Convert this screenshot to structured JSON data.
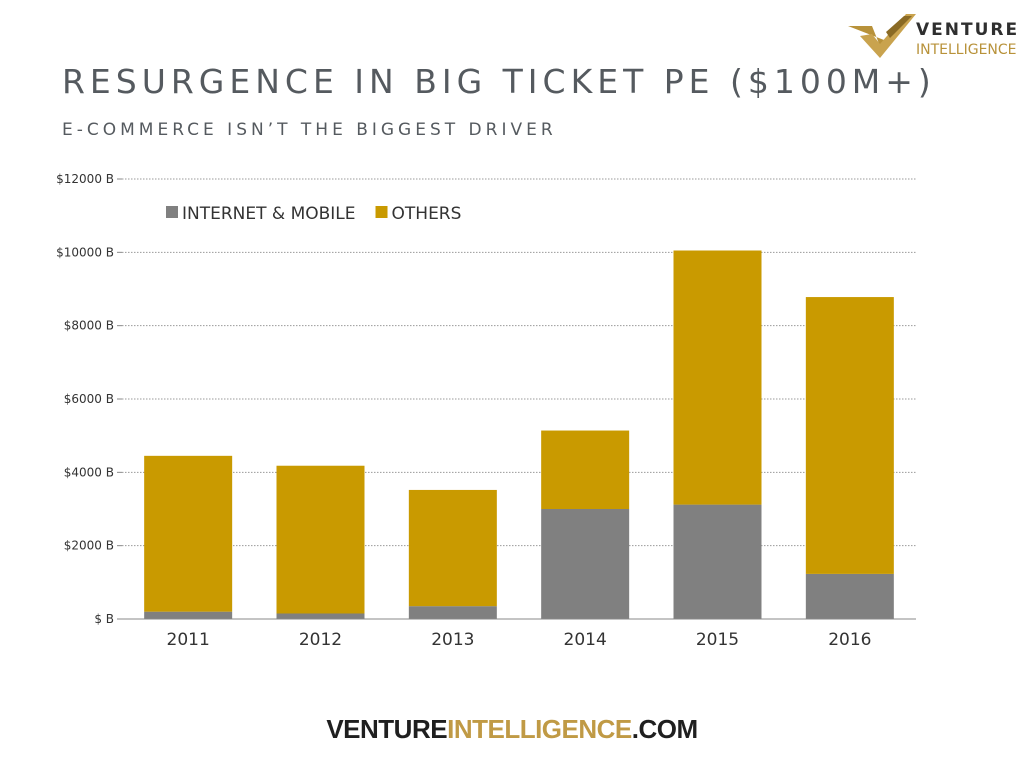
{
  "header": {
    "title": "RESURGENCE IN BIG TICKET PE ($100M+)",
    "subtitle": "E-COMMERCE ISN’T THE BIGGEST DRIVER"
  },
  "logo_top": {
    "word1": "VENTURE",
    "word2": "INTELLIGENCE"
  },
  "footer": {
    "part1": "VENTURE",
    "part2": "INTELLIGENCE",
    "part3": ".COM"
  },
  "colors": {
    "internet_mobile": "#808080",
    "others": "#c99a00",
    "grid": "#9a9a9a",
    "logo_gold": "#b8923a"
  },
  "chart_data": {
    "type": "bar",
    "stacked": true,
    "categories": [
      "2011",
      "2012",
      "2013",
      "2014",
      "2015",
      "2016"
    ],
    "series": [
      {
        "name": "INTERNET & MOBILE",
        "values": [
          200,
          150,
          350,
          3000,
          3120,
          1230
        ]
      },
      {
        "name": "OTHERS",
        "values": [
          4250,
          4030,
          3170,
          2140,
          6930,
          7550
        ]
      }
    ],
    "ylim": [
      0,
      12000
    ],
    "yticks": [
      0,
      2000,
      4000,
      6000,
      8000,
      10000,
      12000
    ],
    "ytick_labels": [
      "$ B",
      "$2000 B",
      "$4000 B",
      "$6000 B",
      "$8000 B",
      "$10000 B",
      "$12000 B"
    ],
    "grid": true,
    "legend_position": "top-left"
  }
}
